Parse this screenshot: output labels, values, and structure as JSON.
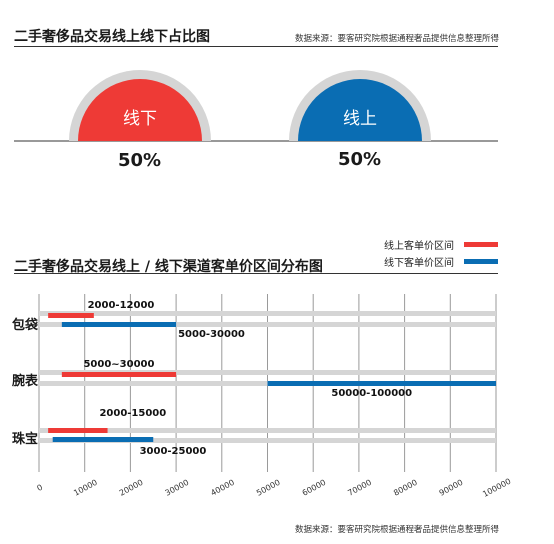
{
  "header": {
    "title": "二手奢侈品交易线上线下占比图",
    "source": "数据来源：要客研究院根据通程奢品提供信息整理所得"
  },
  "colors": {
    "online": "#0a6db3",
    "offline": "#ee3a36",
    "track": "#d5d5d5",
    "grid": "#9a9a9a"
  },
  "chart_data": [
    {
      "type": "pie",
      "title": "二手奢侈品交易线上线下占比图",
      "slices": [
        {
          "label": "线下",
          "value": 50,
          "value_label": "50%"
        },
        {
          "label": "线上",
          "value": 50,
          "value_label": "50%"
        }
      ]
    },
    {
      "type": "bar",
      "orientation": "horizontal-range",
      "title": "二手奢侈品交易线上 / 线下渠道客单价区间分布图",
      "categories": [
        "包袋",
        "腕表",
        "珠宝"
      ],
      "series": [
        {
          "name": "线上客单价区间",
          "ranges": [
            [
              2000,
              12000
            ],
            [
              5000,
              30000
            ],
            [
              2000,
              15000
            ]
          ],
          "labels": [
            "2000-12000",
            "5000~30000",
            "2000-15000"
          ]
        },
        {
          "name": "线下客单价区间",
          "ranges": [
            [
              5000,
              30000
            ],
            [
              50000,
              100000
            ],
            [
              3000,
              25000
            ]
          ],
          "labels": [
            "5000-30000",
            "50000-100000",
            "3000-25000"
          ]
        }
      ],
      "xlim": [
        0,
        100000
      ],
      "x_ticks": [
        "0",
        "10000",
        "20000",
        "30000",
        "40000",
        "50000",
        "60000",
        "70000",
        "80000",
        "90000",
        "100000"
      ],
      "grid": true,
      "legend_position": "top-right"
    }
  ],
  "footer": {
    "source": "数据来源：要客研究院根据通程奢品提供信息整理所得"
  }
}
